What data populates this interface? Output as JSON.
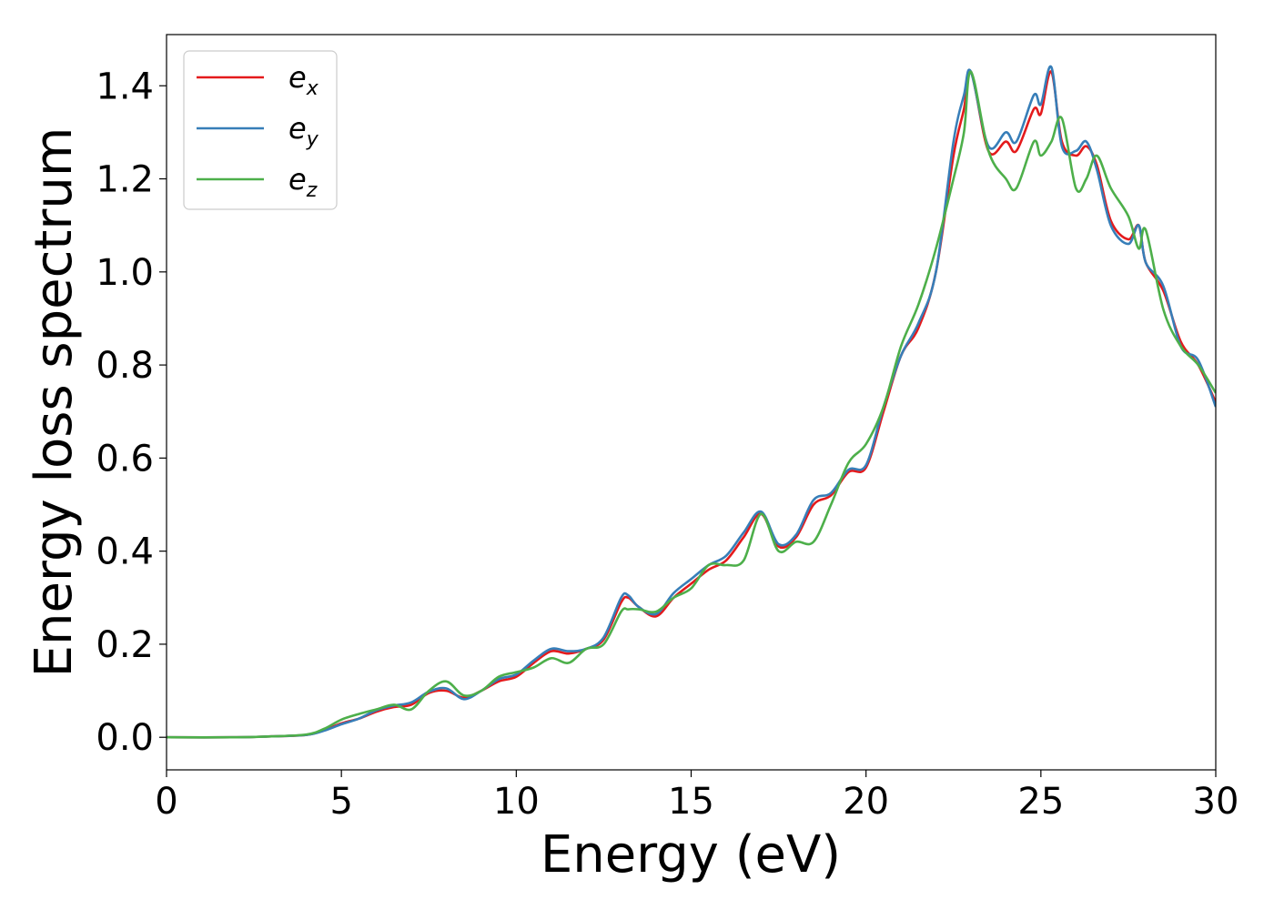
{
  "chart_data": {
    "type": "line",
    "title": "",
    "xlabel": "Energy (eV)",
    "ylabel": "Energy loss spectrum",
    "xlim": [
      0,
      30
    ],
    "ylim": [
      -0.07,
      1.51
    ],
    "xticks": [
      0,
      5,
      10,
      15,
      20,
      25,
      30
    ],
    "yticks": [
      "0.0",
      "0.2",
      "0.4",
      "0.6",
      "0.8",
      "1.0",
      "1.2",
      "1.4"
    ],
    "grid": false,
    "legend_position": "top-left",
    "series": [
      {
        "name": "e",
        "subscript": "x",
        "color": "#e41a1c",
        "x": [
          0,
          2,
          3,
          4,
          4.5,
          5,
          5.5,
          6,
          6.5,
          7,
          7.5,
          8,
          8.5,
          9,
          9.5,
          10,
          10.5,
          11,
          11.5,
          12,
          12.5,
          13,
          13.2,
          13.5,
          14,
          14.5,
          15,
          15.5,
          16,
          16.5,
          17,
          17.5,
          18,
          18.5,
          19,
          19.5,
          20,
          20.5,
          21,
          21.5,
          22,
          22.5,
          22.8,
          23,
          23.5,
          24,
          24.3,
          24.8,
          25,
          25.3,
          25.6,
          26,
          26.3,
          26.6,
          27,
          27.5,
          27.8,
          28,
          28.5,
          29,
          29.5,
          30
        ],
        "y": [
          0,
          0,
          0.002,
          0.005,
          0.015,
          0.03,
          0.04,
          0.055,
          0.065,
          0.07,
          0.095,
          0.1,
          0.085,
          0.1,
          0.12,
          0.13,
          0.16,
          0.185,
          0.18,
          0.19,
          0.21,
          0.29,
          0.3,
          0.28,
          0.26,
          0.3,
          0.33,
          0.36,
          0.38,
          0.43,
          0.48,
          0.41,
          0.43,
          0.5,
          0.52,
          0.57,
          0.58,
          0.7,
          0.82,
          0.88,
          1.0,
          1.25,
          1.35,
          1.43,
          1.26,
          1.28,
          1.26,
          1.35,
          1.34,
          1.43,
          1.28,
          1.25,
          1.27,
          1.23,
          1.11,
          1.07,
          1.1,
          1.02,
          0.96,
          0.85,
          0.8,
          0.72
        ]
      },
      {
        "name": "e",
        "subscript": "y",
        "color": "#377eb8",
        "x": [
          0,
          2,
          3,
          4,
          4.5,
          5,
          5.5,
          6,
          6.5,
          7,
          7.5,
          8,
          8.5,
          9,
          9.5,
          10,
          10.5,
          11,
          11.5,
          12,
          12.5,
          13,
          13.2,
          13.5,
          14,
          14.5,
          15,
          15.5,
          16,
          16.5,
          17,
          17.5,
          18,
          18.5,
          19,
          19.5,
          20,
          20.5,
          21,
          21.5,
          22,
          22.5,
          22.8,
          23,
          23.5,
          24,
          24.3,
          24.8,
          25,
          25.3,
          25.6,
          26,
          26.3,
          26.6,
          27,
          27.5,
          27.8,
          28,
          28.5,
          29,
          29.5,
          30
        ],
        "y": [
          0,
          0,
          0.002,
          0.005,
          0.014,
          0.028,
          0.04,
          0.058,
          0.068,
          0.075,
          0.098,
          0.105,
          0.082,
          0.1,
          0.125,
          0.135,
          0.165,
          0.19,
          0.185,
          0.19,
          0.215,
          0.3,
          0.305,
          0.28,
          0.265,
          0.31,
          0.34,
          0.37,
          0.39,
          0.44,
          0.485,
          0.415,
          0.435,
          0.51,
          0.525,
          0.575,
          0.585,
          0.71,
          0.82,
          0.89,
          1.0,
          1.28,
          1.38,
          1.43,
          1.27,
          1.3,
          1.28,
          1.38,
          1.36,
          1.44,
          1.27,
          1.26,
          1.28,
          1.22,
          1.1,
          1.06,
          1.1,
          1.02,
          0.97,
          0.84,
          0.81,
          0.71
        ]
      },
      {
        "name": "e",
        "subscript": "z",
        "color": "#4daf4a",
        "x": [
          0,
          2,
          3,
          4,
          4.5,
          5,
          5.5,
          6,
          6.5,
          7,
          7.5,
          8,
          8.5,
          9,
          9.5,
          10,
          10.5,
          11,
          11.5,
          12,
          12.5,
          13,
          13.2,
          13.5,
          14,
          14.5,
          15,
          15.5,
          16,
          16.5,
          17,
          17.5,
          18,
          18.5,
          19,
          19.5,
          20,
          20.5,
          21,
          21.5,
          22,
          22.5,
          22.8,
          23,
          23.5,
          24,
          24.3,
          24.8,
          25,
          25.3,
          25.6,
          26,
          26.3,
          26.6,
          27,
          27.5,
          27.8,
          28,
          28.5,
          29,
          29.5,
          30
        ],
        "y": [
          0,
          0,
          0.002,
          0.006,
          0.018,
          0.038,
          0.05,
          0.06,
          0.07,
          0.06,
          0.1,
          0.12,
          0.09,
          0.1,
          0.13,
          0.14,
          0.15,
          0.17,
          0.16,
          0.19,
          0.2,
          0.27,
          0.275,
          0.275,
          0.27,
          0.3,
          0.32,
          0.37,
          0.37,
          0.38,
          0.48,
          0.4,
          0.42,
          0.42,
          0.5,
          0.59,
          0.63,
          0.71,
          0.84,
          0.93,
          1.05,
          1.2,
          1.3,
          1.43,
          1.26,
          1.2,
          1.18,
          1.28,
          1.25,
          1.28,
          1.33,
          1.18,
          1.2,
          1.25,
          1.18,
          1.12,
          1.05,
          1.09,
          0.92,
          0.84,
          0.8,
          0.74
        ]
      }
    ]
  }
}
